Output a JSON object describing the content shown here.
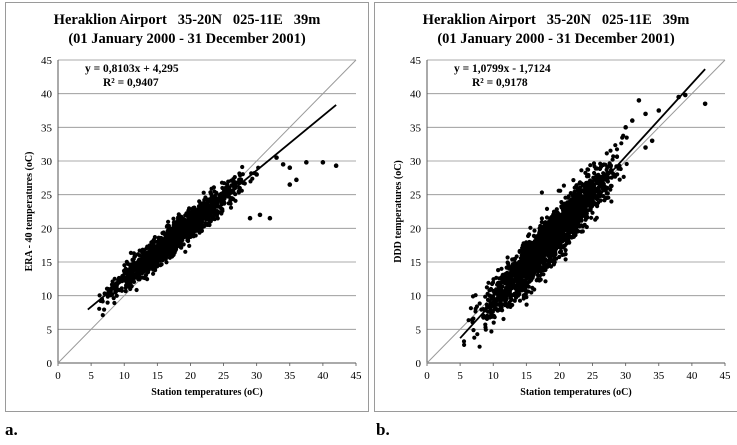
{
  "chart_data": [
    {
      "type": "scatter",
      "panel_label": "a.",
      "title_line1": "Heraklion Airport   35-20N   025-11E   39m",
      "title_line2": "(01 January 2000 - 31 December 2001)",
      "xlabel": "Station temperatures (oC)",
      "ylabel": "ERA - 40 temperatures (oC)",
      "xlim": [
        0,
        45
      ],
      "ylim": [
        0,
        45
      ],
      "xticks": [
        "0",
        "5",
        "10",
        "15",
        "20",
        "25",
        "30",
        "35",
        "40",
        "45"
      ],
      "yticks": [
        "0",
        "5",
        "10",
        "15",
        "20",
        "25",
        "30",
        "35",
        "40",
        "45"
      ],
      "grid": "horizontal",
      "equation": "y = 0,8103x + 4,295",
      "r_squared": "R² = 0,9407",
      "fit": {
        "slope": 0.8103,
        "intercept": 4.295,
        "x_range": [
          4.5,
          42
        ]
      },
      "identity_line": true,
      "cloud": {
        "x_min": 4.5,
        "x_max": 31,
        "spread": 1.1,
        "count": 1500,
        "seed": 7
      },
      "outliers": [
        [
          33,
          30.5
        ],
        [
          34,
          29.5
        ],
        [
          35,
          29
        ],
        [
          37.5,
          29.8
        ],
        [
          40,
          29.8
        ],
        [
          42,
          29.3
        ],
        [
          35,
          26.5
        ],
        [
          32,
          21.5
        ],
        [
          30.5,
          22
        ],
        [
          29,
          21.5
        ],
        [
          30,
          28
        ],
        [
          36,
          27.2
        ]
      ]
    },
    {
      "type": "scatter",
      "panel_label": "b.",
      "title_line1": "Heraklion Airport   35-20N   025-11E   39m",
      "title_line2": "(01 January 2000 - 31 December 2001)",
      "xlabel": "Station temperatures (oC)",
      "ylabel": "DDD temperatures (oC)",
      "xlim": [
        0,
        45
      ],
      "ylim": [
        0,
        45
      ],
      "xticks": [
        "0",
        "5",
        "10",
        "15",
        "20",
        "25",
        "30",
        "35",
        "40",
        "45"
      ],
      "yticks": [
        "0",
        "5",
        "10",
        "15",
        "20",
        "25",
        "30",
        "35",
        "40",
        "45"
      ],
      "grid": "horizontal",
      "equation": "y = 1,0799x - 1,7124",
      "r_squared": "R² = 0,9178",
      "fit": {
        "slope": 1.0799,
        "intercept": -1.7124,
        "x_range": [
          5,
          42
        ]
      },
      "identity_line": true,
      "cloud": {
        "x_min": 5,
        "x_max": 31.5,
        "spread": 1.8,
        "count": 2000,
        "seed": 11
      },
      "outliers": [
        [
          32,
          39
        ],
        [
          33,
          37
        ],
        [
          35,
          37.5
        ],
        [
          38,
          39.5
        ],
        [
          39,
          39.8
        ],
        [
          42,
          38.5
        ],
        [
          33,
          32
        ],
        [
          34,
          33
        ],
        [
          31,
          36
        ],
        [
          30,
          35
        ]
      ]
    }
  ]
}
